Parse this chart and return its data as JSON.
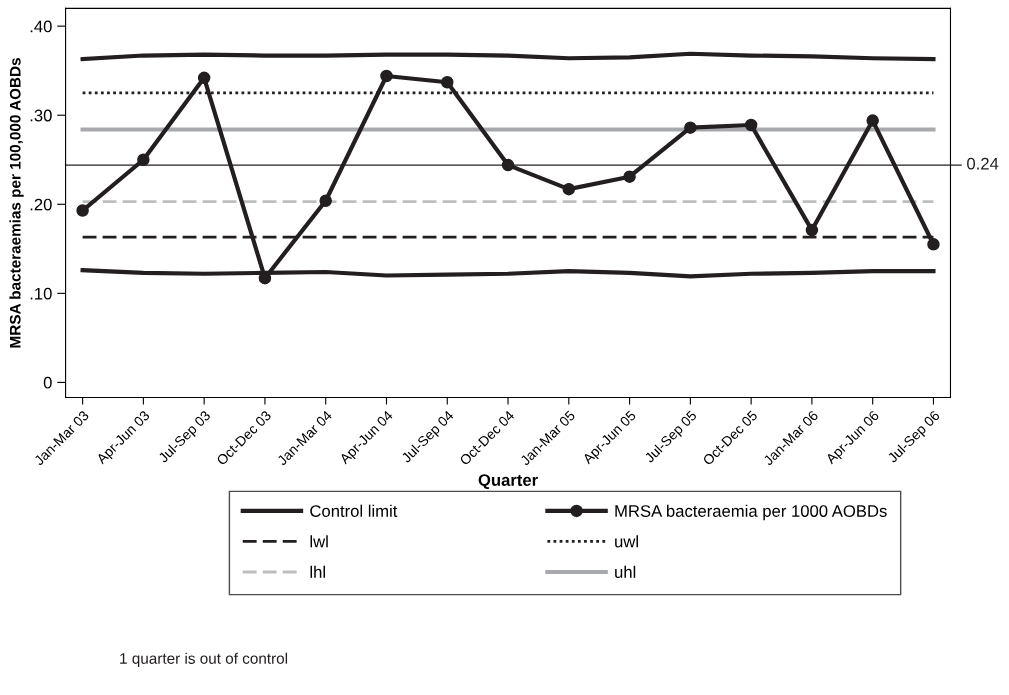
{
  "chart_data": {
    "type": "line",
    "xlabel": "Quarter",
    "ylabel": "MRSA bacteraemias per 100,000 AOBDs",
    "categories": [
      "Jan-Mar 03",
      "Apr-Jun 03",
      "Jul-Sep 03",
      "Oct-Dec 03",
      "Jan-Mar 04",
      "Apr-Jun 04",
      "Jul-Sep 04",
      "Oct-Dec 04",
      "Jan-Mar 05",
      "Apr-Jun 05",
      "Jul-Sep 05",
      "Oct-Dec 05",
      "Jan-Mar 06",
      "Apr-Jun 06",
      "Jul-Sep 06"
    ],
    "series": [
      {
        "name": "Control limit",
        "color": "#231f20",
        "line_style": "solid",
        "marker": "none",
        "values": [
          0.363,
          0.367,
          0.368,
          0.367,
          0.367,
          0.368,
          0.368,
          0.367,
          0.364,
          0.365,
          0.369,
          0.367,
          0.366,
          0.364,
          0.363
        ]
      },
      {
        "color": "#231f20",
        "line_style": "solid",
        "marker": "none",
        "values": [
          0.126,
          0.123,
          0.122,
          0.123,
          0.124,
          0.12,
          0.121,
          0.122,
          0.125,
          0.123,
          0.119,
          0.122,
          0.123,
          0.125,
          0.125
        ]
      },
      {
        "name": "lwl",
        "color": "#231f20",
        "line_style": "dashed",
        "marker": "none",
        "values": [
          0.163,
          0.163,
          0.163,
          0.163,
          0.163,
          0.163,
          0.163,
          0.163,
          0.163,
          0.163,
          0.163,
          0.163,
          0.163,
          0.163,
          0.163
        ]
      },
      {
        "name": "lhl",
        "color": "#bcbec0",
        "line_style": "dashed",
        "marker": "none",
        "values": [
          0.203,
          0.203,
          0.203,
          0.203,
          0.203,
          0.203,
          0.203,
          0.203,
          0.203,
          0.203,
          0.203,
          0.203,
          0.203,
          0.203,
          0.203
        ]
      },
      {
        "name": "MRSA bacteraemia per 1000 AOBDs",
        "color": "#231f20",
        "line_style": "solid",
        "marker": "circle",
        "values": [
          0.193,
          0.25,
          0.342,
          0.117,
          0.204,
          0.344,
          0.337,
          0.244,
          0.217,
          0.231,
          0.286,
          0.289,
          0.171,
          0.294,
          0.155
        ]
      },
      {
        "name": "uwl",
        "color": "#231f20",
        "line_style": "dotted",
        "marker": "none",
        "values": [
          0.325,
          0.325,
          0.325,
          0.325,
          0.325,
          0.325,
          0.325,
          0.325,
          0.325,
          0.325,
          0.325,
          0.325,
          0.325,
          0.325,
          0.325
        ]
      },
      {
        "name": "uhl",
        "color": "#a7a9ac",
        "line_style": "solid",
        "marker": "none",
        "values": [
          0.284,
          0.284,
          0.284,
          0.284,
          0.284,
          0.284,
          0.284,
          0.284,
          0.284,
          0.284,
          0.284,
          0.284,
          0.284,
          0.284,
          0.284
        ]
      }
    ],
    "ylim": [
      -0.017,
      0.42
    ],
    "yticks": [
      {
        "value": 0,
        "label": "0"
      },
      {
        "value": 0.1,
        "label": ".10"
      },
      {
        "value": 0.2,
        "label": ".20"
      },
      {
        "value": 0.3,
        "label": ".30"
      },
      {
        "value": 0.4,
        "label": ".40"
      }
    ],
    "ref_lines": [
      {
        "axis": "y",
        "value": 0.244,
        "label": "0.24",
        "color": "#231f20",
        "line_style": "solid"
      }
    ],
    "grid": false,
    "legend": "bottom",
    "annotations": [
      "1 quarter is out of control"
    ]
  }
}
